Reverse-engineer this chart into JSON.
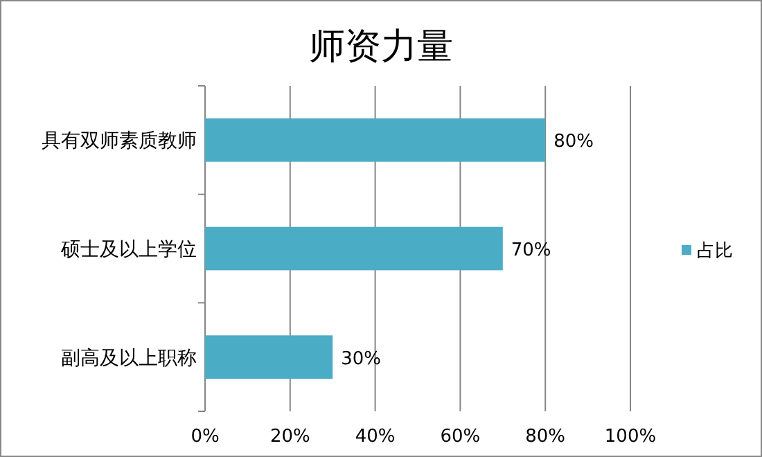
{
  "chart_data": {
    "type": "bar",
    "orientation": "horizontal",
    "title": "师资力量",
    "categories": [
      "具有双师素质教师",
      "硕士及以上学位",
      "副高及以上职称"
    ],
    "series": [
      {
        "name": "占比",
        "color": "#4bacc6",
        "values": [
          80,
          70,
          30
        ],
        "value_labels": [
          "80%",
          "70%",
          "30%"
        ]
      }
    ],
    "xlim": [
      0,
      100
    ],
    "xticks": [
      {
        "value": 0,
        "label": "0%"
      },
      {
        "value": 20,
        "label": "20%"
      },
      {
        "value": 40,
        "label": "40%"
      },
      {
        "value": 60,
        "label": "60%"
      },
      {
        "value": 80,
        "label": "80%"
      },
      {
        "value": 100,
        "label": "100%"
      }
    ],
    "grid": "x",
    "legend": "right"
  }
}
